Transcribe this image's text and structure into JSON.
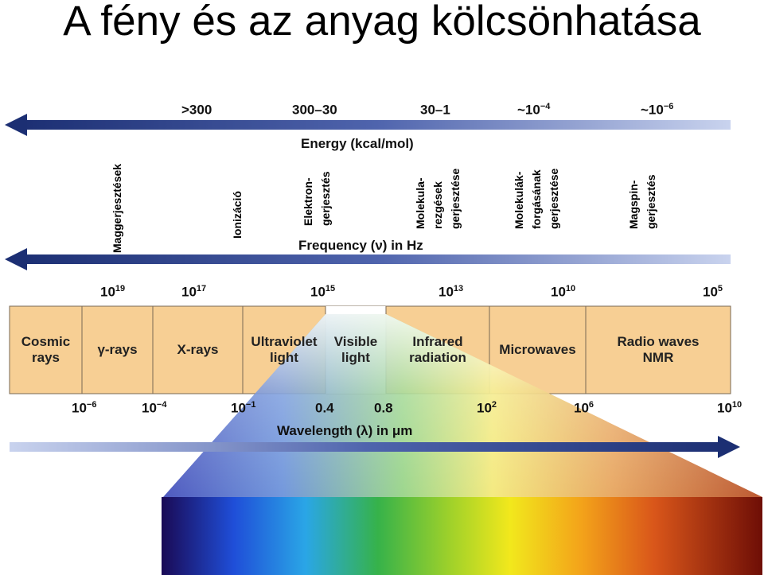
{
  "title": "A fény és az anyag kölcsönhatása",
  "energy": {
    "label": "Energy (kcal/mol)",
    "values": [
      {
        "base": ">300",
        "exp": ""
      },
      {
        "base": "300–30",
        "exp": ""
      },
      {
        "base": "30–1",
        "exp": ""
      },
      {
        "base": "~10",
        "exp": "−4"
      },
      {
        "base": "~10",
        "exp": "−6"
      }
    ]
  },
  "excitations": [
    {
      "lines": [
        "Maggerjesztések"
      ]
    },
    {
      "lines": [
        "Ionizáció"
      ]
    },
    {
      "lines": [
        "Elektron-",
        "gerjesztés"
      ]
    },
    {
      "lines": [
        "Molekula-",
        "rezgések",
        "gerjesztése"
      ]
    },
    {
      "lines": [
        "Molekulák-",
        "forgásának",
        "gerjesztése"
      ]
    },
    {
      "lines": [
        "Magspin-",
        "gerjesztés"
      ]
    }
  ],
  "frequency": {
    "label": "Frequency (ν) in Hz",
    "ticks": [
      {
        "base": "10",
        "exp": "19"
      },
      {
        "base": "10",
        "exp": "17"
      },
      {
        "base": "10",
        "exp": "15"
      },
      {
        "base": "10",
        "exp": "13"
      },
      {
        "base": "10",
        "exp": "10"
      },
      {
        "base": "10",
        "exp": "5"
      }
    ]
  },
  "bands": [
    {
      "lines": [
        "Cosmic",
        "rays"
      ]
    },
    {
      "lines": [
        "γ-rays"
      ]
    },
    {
      "lines": [
        "X-rays"
      ]
    },
    {
      "lines": [
        "Ultraviolet",
        "light"
      ]
    },
    {
      "lines": [
        "Visible",
        "light"
      ]
    },
    {
      "lines": [
        "Infrared",
        "radiation"
      ]
    },
    {
      "lines": [
        "Microwaves"
      ]
    },
    {
      "lines": [
        "Radio waves",
        "NMR"
      ]
    }
  ],
  "wavelength": {
    "label": "Wavelength (λ) in μm",
    "ticks": [
      {
        "base": "10",
        "exp": "−6"
      },
      {
        "base": "10",
        "exp": "−4"
      },
      {
        "base": "10",
        "exp": "−1"
      },
      {
        "base": "0.4",
        "exp": ""
      },
      {
        "base": "0.8",
        "exp": ""
      },
      {
        "base": "10",
        "exp": "2"
      },
      {
        "base": "10",
        "exp": "6"
      },
      {
        "base": "10",
        "exp": "10"
      }
    ]
  },
  "colors": {
    "arrow_dark": "#1c2f73",
    "arrow_light": "#c7d2ec",
    "band_fill": "#f7cf94",
    "visible_fill": "#ffffff"
  }
}
